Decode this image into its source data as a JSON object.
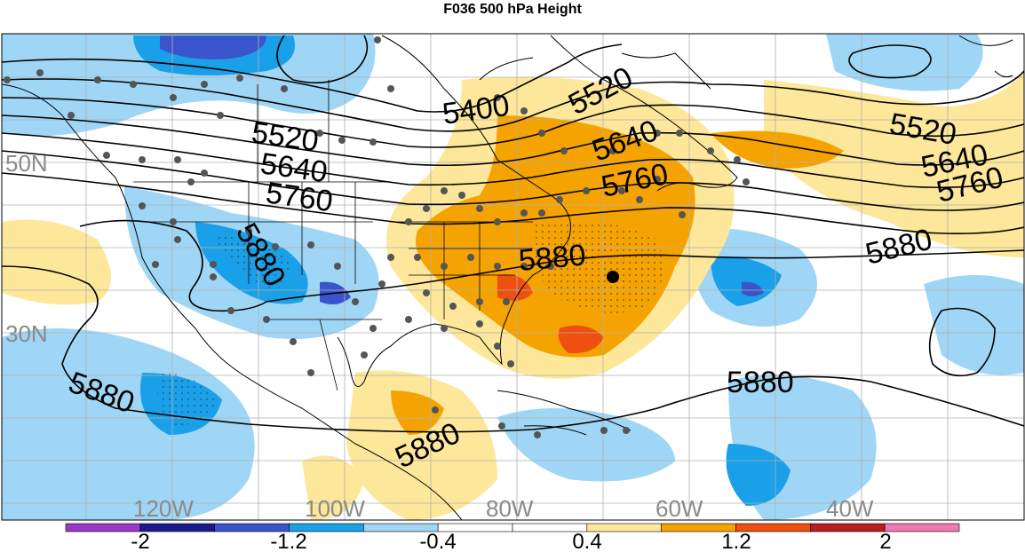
{
  "title": "F036 500 hPa Height",
  "map": {
    "lat_labels": [
      "50N",
      "30N"
    ],
    "lon_labels": [
      "120W",
      "100W",
      "80W",
      "60W",
      "40W"
    ],
    "contour_labels": [
      "5400",
      "5520",
      "5640",
      "5760",
      "5880",
      "5520",
      "5640",
      "5760",
      "5880",
      "5520",
      "5640",
      "5760",
      "5880",
      "5880",
      "5880",
      "5880"
    ]
  },
  "colorbar": {
    "labels": [
      "-2",
      "-1.2",
      "-0.4",
      "0.4",
      "1.2",
      "2"
    ],
    "colors": [
      "#9a38c8",
      "#1a1a8c",
      "#3a55cc",
      "#1aa0e8",
      "#9fd6f5",
      "#ffffff",
      "#ffffff",
      "#fde79a",
      "#f5a300",
      "#ee5010",
      "#b81e1e",
      "#f07ab0"
    ]
  }
}
